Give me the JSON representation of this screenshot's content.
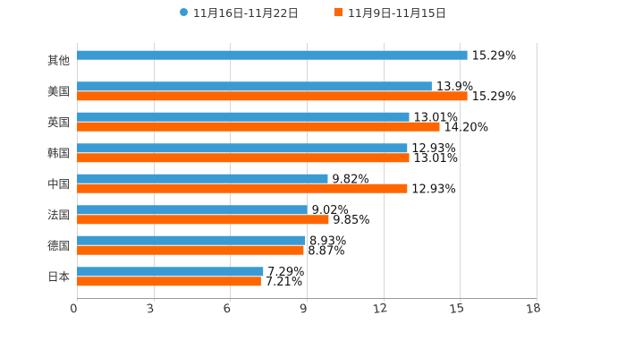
{
  "chart_data": {
    "type": "bar",
    "orientation": "horizontal",
    "title": "",
    "xlabel": "",
    "ylabel": "",
    "xlim": [
      0,
      18
    ],
    "xticks": [
      "0",
      "3",
      "6",
      "9",
      "12",
      "15",
      "18"
    ],
    "xtick_values": [
      0,
      3,
      6,
      9,
      12,
      15,
      18
    ],
    "grid": true,
    "legend_position": "top-center",
    "categories": [
      "其他",
      "美国",
      "英国",
      "韩国",
      "中国",
      "法国",
      "德国",
      "日本"
    ],
    "series": [
      {
        "name": "11月16日-11月22日",
        "color": "#3a9bd4",
        "values": [
          15.29,
          13.9,
          13.01,
          12.93,
          9.82,
          9.02,
          8.93,
          7.29
        ],
        "labels": [
          "15.29%",
          "13.9%",
          "13.01%",
          "12.93%",
          "9.82%",
          "9.02%",
          "8.93%",
          "7.29%"
        ]
      },
      {
        "name": "11月9日-11月15日",
        "color": "#ff6600",
        "values": [
          null,
          15.29,
          14.2,
          13.01,
          12.93,
          9.85,
          8.87,
          7.21
        ],
        "labels": [
          null,
          "15.29%",
          "14.20%",
          "13.01%",
          "12.93%",
          "9.85%",
          "8.87%",
          "7.21%"
        ]
      }
    ]
  }
}
